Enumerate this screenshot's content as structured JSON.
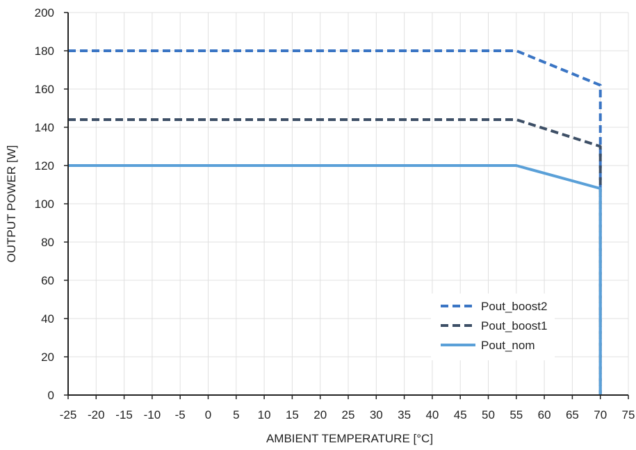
{
  "chart_data": {
    "type": "line",
    "title": "",
    "xlabel": "AMBIENT TEMPERATURE [°C]",
    "ylabel": "OUTPUT POWER [W]",
    "xlim": [
      -25,
      75
    ],
    "ylim": [
      0,
      200
    ],
    "xticks": [
      -25,
      -20,
      -15,
      -10,
      -5,
      0,
      5,
      10,
      15,
      20,
      25,
      30,
      35,
      40,
      45,
      50,
      55,
      60,
      65,
      70,
      75
    ],
    "yticks": [
      0,
      20,
      40,
      60,
      80,
      100,
      120,
      140,
      160,
      180,
      200
    ],
    "grid": true,
    "legend_position": "bottom-right",
    "series": [
      {
        "name": "Pout_boost2",
        "color": "#3a75c4",
        "dash": "dashed",
        "x": [
          -25,
          55,
          70,
          70
        ],
        "y": [
          180,
          180,
          162,
          0
        ]
      },
      {
        "name": "Pout_boost1",
        "color": "#3d4f66",
        "dash": "dashed",
        "x": [
          -25,
          55,
          70,
          70
        ],
        "y": [
          144,
          144,
          130,
          0
        ]
      },
      {
        "name": "Pout_nom",
        "color": "#5aa0d8",
        "dash": "solid",
        "x": [
          -25,
          55,
          70,
          70
        ],
        "y": [
          120,
          120,
          108,
          0
        ]
      }
    ]
  }
}
